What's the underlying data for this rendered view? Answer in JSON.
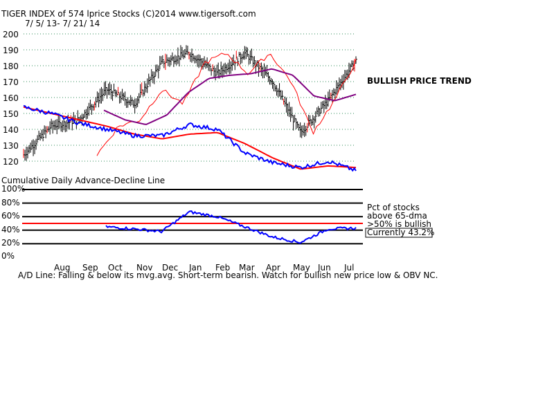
{
  "header": {
    "title": "TIGER INDEX of  574 lprice Stocks  (C)2014  www.tigersoft.com",
    "date_range": "7/ 5/ 13- 7/ 21/ 14"
  },
  "upper_chart": {
    "annotation": "BULLISH PRICE TREND",
    "y_ticks": [
      "200",
      "190",
      "180",
      "170",
      "160",
      "150",
      "140",
      "130",
      "120"
    ]
  },
  "lower_chart": {
    "title": "Cumulative Daily Advance-Decline Line",
    "y_ticks": [
      "100%",
      "80%",
      "60%",
      "40%",
      "20%",
      "0%"
    ],
    "notes": [
      "Pct of stocks",
      "above 65-dma",
      ">50% is bullish",
      "Currently  43.2%"
    ]
  },
  "x_axis": {
    "months": [
      "Aug",
      "Sep",
      "Oct",
      "Nov",
      "Dec",
      "Jan",
      "Feb",
      "Mar",
      "Apr",
      "May",
      "Jun",
      "Jul"
    ]
  },
  "footer": {
    "comment": "A/D Line: Falling & below its mvg.avg. Short-term bearish. Watch for bullish new price low & OBV NC."
  },
  "colors": {
    "price_bars": "#000000",
    "ma_red": "#ff0000",
    "ma_purple": "#800080",
    "ad_line": "#0000ff",
    "grid": "#2e8b57"
  },
  "chart_data": [
    {
      "type": "line",
      "title": "TIGER INDEX of 574 lprice Stocks",
      "xlabel": "",
      "ylabel": "",
      "ylim": [
        115,
        201
      ],
      "grid": true,
      "x": [
        "Jul",
        "Aug",
        "Sep",
        "Oct",
        "Nov",
        "Dec",
        "Jan",
        "Feb",
        "Mar",
        "Apr",
        "May",
        "Jun",
        "Jul"
      ],
      "series": [
        {
          "values": [
            124,
            142,
            146,
            165,
            156,
            182,
            188,
            175,
            188,
            170,
            138,
            158,
            183
          ]
        },
        {
          "values": [
            154,
            150,
            146,
            142,
            137,
            134,
            137,
            138,
            131,
            122,
            115,
            117,
            116
          ]
        },
        {
          "values": [
            152,
            146,
            143,
            149,
            163,
            172,
            174,
            175,
            178,
            174,
            161,
            158,
            162
          ]
        },
        {
          "values": [
            154,
            150,
            144,
            140,
            136,
            136,
            143,
            140,
            125,
            119,
            116,
            120,
            114
          ]
        }
      ]
    },
    {
      "type": "line",
      "title": "Cumulative Daily Advance-Decline Line",
      "ylabel": "",
      "ylim": [
        0,
        100
      ],
      "y_ticks": [
        100,
        80,
        60,
        40,
        20,
        0
      ],
      "reference_line": 50,
      "current": 43.2,
      "x": [
        "Oct",
        "Nov",
        "Dec",
        "Jan",
        "Feb",
        "Mar",
        "Apr",
        "May",
        "Jun",
        "Jul"
      ],
      "values": [
        45,
        42,
        38,
        67,
        60,
        45,
        30,
        22,
        42,
        43
      ]
    }
  ]
}
